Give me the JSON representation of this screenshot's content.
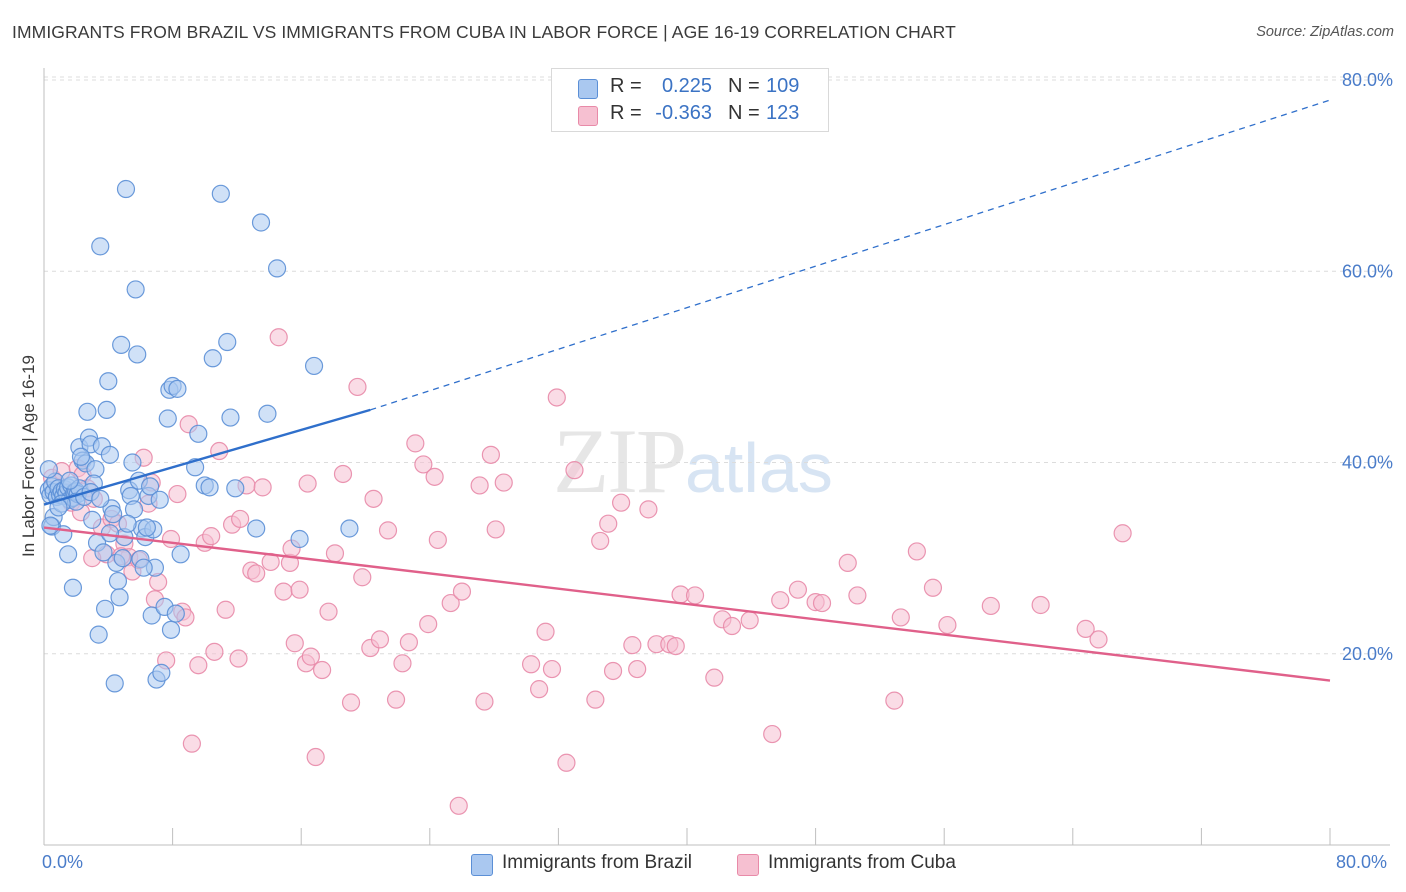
{
  "title": "IMMIGRANTS FROM BRAZIL VS IMMIGRANTS FROM CUBA IN LABOR FORCE | AGE 16-19 CORRELATION CHART",
  "source": "Source: ZipAtlas.com",
  "watermark": {
    "zip": "ZIP",
    "atlas": "atlas"
  },
  "legend": {
    "r_label": "R =",
    "n_label": "N =",
    "brazil": {
      "r": "0.225",
      "n": "109"
    },
    "cuba": {
      "r": "-0.363",
      "n": "123"
    }
  },
  "colors": {
    "brazil_fill": "#aac8f0",
    "brazil_stroke": "#5b8fd6",
    "brazil_line": "#2f6fcb",
    "cuba_fill": "#f6c0d1",
    "cuba_stroke": "#e88aa8",
    "cuba_line": "#e0608a",
    "tick_text": "#4a7cc9",
    "grid": "#dcdcdc"
  },
  "chart_data": {
    "type": "scatter",
    "title": "IMMIGRANTS FROM BRAZIL VS IMMIGRANTS FROM CUBA IN LABOR FORCE | AGE 16-19 CORRELATION CHART",
    "xlabel": "",
    "ylabel": "In Labor Force | Age 16-19",
    "xlim": [
      0,
      80
    ],
    "ylim": [
      0,
      80
    ],
    "x_tick_labels": [
      "0.0%",
      "80.0%"
    ],
    "y_ticks": [
      20,
      40,
      60,
      80
    ],
    "y_tick_labels": [
      "20.0%",
      "40.0%",
      "60.0%",
      "80.0%"
    ],
    "grid": true,
    "legend_position": "top-center",
    "series": [
      {
        "name": "Immigrants from Brazil",
        "trend": {
          "x0": 0,
          "y0": 35.6,
          "x1": 20.3,
          "y1": 45.5,
          "dashed_to_x": 80,
          "dashed_to_y": 77.9
        },
        "points": [
          [
            0.3,
            37.1
          ],
          [
            0.4,
            36.6
          ],
          [
            0.5,
            37.5
          ],
          [
            0.6,
            36.9
          ],
          [
            0.7,
            38.0
          ],
          [
            0.8,
            36.4
          ],
          [
            0.9,
            37.3
          ],
          [
            1.0,
            36.6
          ],
          [
            1.1,
            37.0
          ],
          [
            1.2,
            36.5
          ],
          [
            1.3,
            37.2
          ],
          [
            1.4,
            36.8
          ],
          [
            1.5,
            37.4
          ],
          [
            1.6,
            36.1
          ],
          [
            1.7,
            37.6
          ],
          [
            1.8,
            36.3
          ],
          [
            1.9,
            36.9
          ],
          [
            2.0,
            37.0
          ],
          [
            2.1,
            36.7
          ],
          [
            2.2,
            37.3
          ],
          [
            0.3,
            39.3
          ],
          [
            0.5,
            33.3
          ],
          [
            0.6,
            34.3
          ],
          [
            1.2,
            32.5
          ],
          [
            1.5,
            30.4
          ],
          [
            1.8,
            26.9
          ],
          [
            2.0,
            35.9
          ],
          [
            2.2,
            41.6
          ],
          [
            2.4,
            40.2
          ],
          [
            2.6,
            39.9
          ],
          [
            2.7,
            45.3
          ],
          [
            2.8,
            42.6
          ],
          [
            2.9,
            41.9
          ],
          [
            3.0,
            34.0
          ],
          [
            3.2,
            39.3
          ],
          [
            3.3,
            31.6
          ],
          [
            3.4,
            22.0
          ],
          [
            3.5,
            62.6
          ],
          [
            3.6,
            41.7
          ],
          [
            3.7,
            30.6
          ],
          [
            3.8,
            24.7
          ],
          [
            3.9,
            45.5
          ],
          [
            4.0,
            48.5
          ],
          [
            4.1,
            40.8
          ],
          [
            4.2,
            35.2
          ],
          [
            4.3,
            34.6
          ],
          [
            4.4,
            16.9
          ],
          [
            4.5,
            29.5
          ],
          [
            4.6,
            27.6
          ],
          [
            4.7,
            25.9
          ],
          [
            4.8,
            52.3
          ],
          [
            4.9,
            30.0
          ],
          [
            5.0,
            32.2
          ],
          [
            5.1,
            68.6
          ],
          [
            5.3,
            37.1
          ],
          [
            5.4,
            36.5
          ],
          [
            5.6,
            35.1
          ],
          [
            5.7,
            58.1
          ],
          [
            5.8,
            51.3
          ],
          [
            5.9,
            38.1
          ],
          [
            6.0,
            29.9
          ],
          [
            6.1,
            33.1
          ],
          [
            6.3,
            32.2
          ],
          [
            6.5,
            36.5
          ],
          [
            6.6,
            37.5
          ],
          [
            6.7,
            24.0
          ],
          [
            6.8,
            33.0
          ],
          [
            6.9,
            29.0
          ],
          [
            7.0,
            17.3
          ],
          [
            7.2,
            36.1
          ],
          [
            7.3,
            18.0
          ],
          [
            7.5,
            24.9
          ],
          [
            7.7,
            44.6
          ],
          [
            7.8,
            47.6
          ],
          [
            7.9,
            22.5
          ],
          [
            8.0,
            48.0
          ],
          [
            8.2,
            24.2
          ],
          [
            8.3,
            47.7
          ],
          [
            8.5,
            30.4
          ],
          [
            9.4,
            39.5
          ],
          [
            9.6,
            43.0
          ],
          [
            10.0,
            37.6
          ],
          [
            10.3,
            37.4
          ],
          [
            10.5,
            50.9
          ],
          [
            11.0,
            68.1
          ],
          [
            11.4,
            52.6
          ],
          [
            11.6,
            44.7
          ],
          [
            11.9,
            37.3
          ],
          [
            13.2,
            33.1
          ],
          [
            13.5,
            65.1
          ],
          [
            13.9,
            45.1
          ],
          [
            14.5,
            60.3
          ],
          [
            15.9,
            32.0
          ],
          [
            16.8,
            50.1
          ],
          [
            19.0,
            33.1
          ],
          [
            5.2,
            33.6
          ],
          [
            6.2,
            29.0
          ],
          [
            3.1,
            37.8
          ],
          [
            2.3,
            40.6
          ],
          [
            1.6,
            38.1
          ],
          [
            4.1,
            32.6
          ],
          [
            6.4,
            33.2
          ],
          [
            1.1,
            35.7
          ],
          [
            2.5,
            36.4
          ],
          [
            0.9,
            35.3
          ],
          [
            5.5,
            40.0
          ],
          [
            2.9,
            36.9
          ],
          [
            3.5,
            36.2
          ],
          [
            0.4,
            33.4
          ]
        ]
      },
      {
        "name": "Immigrants from Cuba",
        "trend": {
          "x0": 0,
          "y0": 33.2,
          "x1": 80,
          "y1": 17.2
        },
        "points": [
          [
            0.5,
            38.4
          ],
          [
            1.1,
            39.1
          ],
          [
            1.4,
            36.9
          ],
          [
            1.7,
            35.8
          ],
          [
            2.1,
            39.4
          ],
          [
            2.4,
            38.7
          ],
          [
            2.7,
            37.3
          ],
          [
            3.1,
            36.2
          ],
          [
            3.6,
            33.2
          ],
          [
            3.9,
            30.4
          ],
          [
            4.2,
            34.1
          ],
          [
            4.6,
            33.6
          ],
          [
            5.0,
            31.5
          ],
          [
            5.3,
            30.1
          ],
          [
            5.5,
            28.6
          ],
          [
            5.9,
            29.8
          ],
          [
            6.2,
            40.5
          ],
          [
            6.5,
            35.7
          ],
          [
            6.9,
            25.7
          ],
          [
            7.1,
            27.5
          ],
          [
            7.6,
            19.3
          ],
          [
            7.9,
            32.0
          ],
          [
            8.3,
            36.7
          ],
          [
            8.6,
            24.4
          ],
          [
            9.0,
            44.0
          ],
          [
            9.2,
            10.6
          ],
          [
            9.6,
            18.8
          ],
          [
            10.0,
            31.6
          ],
          [
            10.4,
            32.3
          ],
          [
            10.6,
            20.2
          ],
          [
            10.9,
            41.2
          ],
          [
            11.3,
            24.6
          ],
          [
            11.7,
            33.5
          ],
          [
            12.1,
            19.5
          ],
          [
            12.6,
            37.6
          ],
          [
            12.9,
            28.7
          ],
          [
            13.2,
            28.4
          ],
          [
            13.6,
            37.4
          ],
          [
            14.1,
            29.6
          ],
          [
            14.6,
            53.1
          ],
          [
            14.9,
            26.5
          ],
          [
            15.3,
            29.5
          ],
          [
            15.6,
            21.1
          ],
          [
            15.9,
            26.7
          ],
          [
            16.3,
            19.0
          ],
          [
            16.6,
            19.7
          ],
          [
            16.9,
            9.2
          ],
          [
            17.3,
            18.3
          ],
          [
            17.7,
            24.4
          ],
          [
            18.1,
            30.5
          ],
          [
            18.6,
            38.8
          ],
          [
            19.1,
            14.9
          ],
          [
            19.5,
            47.9
          ],
          [
            19.8,
            28.0
          ],
          [
            20.3,
            20.6
          ],
          [
            20.9,
            21.5
          ],
          [
            21.4,
            32.9
          ],
          [
            21.9,
            15.2
          ],
          [
            22.3,
            19.0
          ],
          [
            22.7,
            21.2
          ],
          [
            23.1,
            42.0
          ],
          [
            23.6,
            39.8
          ],
          [
            23.9,
            23.1
          ],
          [
            24.3,
            38.5
          ],
          [
            24.5,
            31.9
          ],
          [
            25.3,
            25.3
          ],
          [
            25.8,
            4.1
          ],
          [
            27.1,
            37.6
          ],
          [
            27.4,
            15.0
          ],
          [
            27.8,
            40.8
          ],
          [
            28.1,
            33.0
          ],
          [
            28.6,
            37.9
          ],
          [
            30.3,
            18.9
          ],
          [
            30.8,
            16.3
          ],
          [
            31.2,
            22.3
          ],
          [
            31.6,
            18.4
          ],
          [
            31.9,
            46.8
          ],
          [
            32.5,
            8.6
          ],
          [
            33.0,
            39.2
          ],
          [
            34.3,
            15.2
          ],
          [
            34.6,
            31.8
          ],
          [
            35.1,
            33.6
          ],
          [
            35.4,
            18.2
          ],
          [
            35.9,
            35.8
          ],
          [
            36.6,
            20.9
          ],
          [
            36.9,
            18.4
          ],
          [
            37.6,
            35.1
          ],
          [
            38.1,
            21.0
          ],
          [
            38.9,
            21.0
          ],
          [
            39.3,
            20.8
          ],
          [
            39.6,
            26.2
          ],
          [
            40.5,
            26.1
          ],
          [
            41.7,
            17.5
          ],
          [
            42.2,
            23.6
          ],
          [
            42.8,
            22.9
          ],
          [
            43.9,
            23.5
          ],
          [
            45.3,
            11.6
          ],
          [
            45.8,
            25.6
          ],
          [
            46.9,
            26.7
          ],
          [
            48.0,
            25.4
          ],
          [
            48.4,
            25.3
          ],
          [
            50.0,
            29.5
          ],
          [
            50.6,
            26.1
          ],
          [
            52.9,
            15.1
          ],
          [
            53.3,
            23.8
          ],
          [
            54.3,
            30.7
          ],
          [
            55.3,
            26.9
          ],
          [
            56.2,
            23.0
          ],
          [
            58.9,
            25.0
          ],
          [
            62.0,
            25.1
          ],
          [
            64.8,
            22.6
          ],
          [
            65.6,
            21.5
          ],
          [
            67.1,
            32.6
          ],
          [
            3.0,
            30.0
          ],
          [
            4.8,
            30.2
          ],
          [
            2.3,
            34.8
          ],
          [
            6.7,
            37.9
          ],
          [
            12.2,
            34.1
          ],
          [
            16.4,
            37.8
          ],
          [
            8.8,
            23.8
          ],
          [
            15.4,
            31.0
          ],
          [
            20.5,
            36.2
          ],
          [
            26.0,
            26.5
          ]
        ]
      }
    ]
  }
}
